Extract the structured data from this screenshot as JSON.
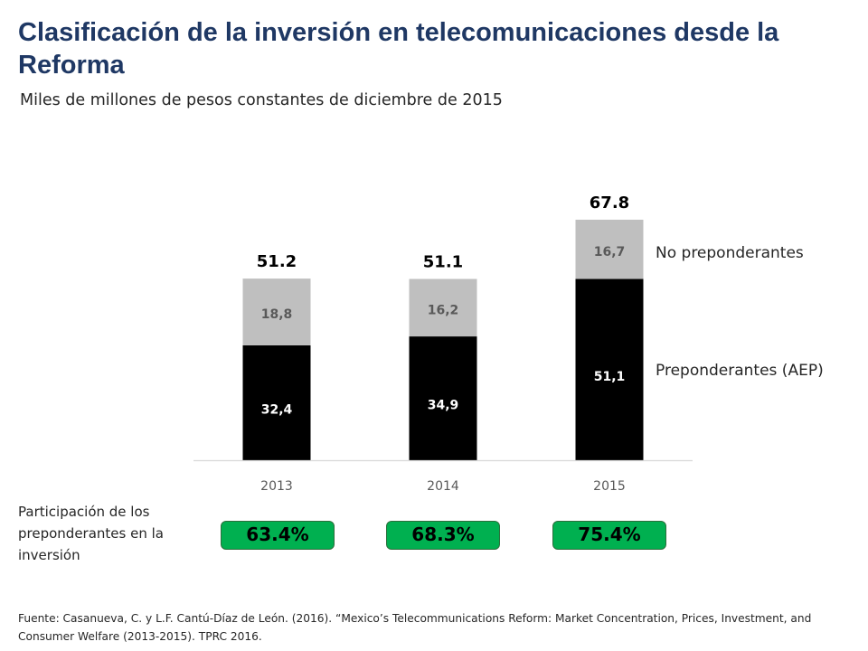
{
  "page": {
    "title": "Clasificación de la inversión en telecomunicaciones desde la Reforma",
    "subtitle": "Miles de millones de pesos constantes de diciembre de 2015",
    "share_label": "Participación de los preponderantes en la inversión",
    "share_badges": [
      "63.4%",
      "68.3%",
      "75.4%"
    ],
    "source": "Fuente: Casanueva, C. y L.F. Cantú-Díaz de León. (2016). “Mexico’s Telecommunications Reform: Market Concentration, Prices, Investment, and Consumer Welfare (2013-2015). TPRC 2016."
  },
  "colors": {
    "title": "#1f3864",
    "preponderantes": "#000000",
    "no_preponderantes": "#bfbfbf",
    "badge": "#00b050"
  },
  "chart_data": {
    "type": "bar",
    "stacked": true,
    "categories": [
      "2013",
      "2014",
      "2015"
    ],
    "series": [
      {
        "name": "Preponderantes (AEP)",
        "values": [
          32.4,
          34.9,
          51.1
        ],
        "labels": [
          "32,4",
          "34,9",
          "51,1"
        ]
      },
      {
        "name": "No preponderantes",
        "values": [
          18.8,
          16.2,
          16.7
        ],
        "labels": [
          "18,8",
          "16,2",
          "16,7"
        ]
      }
    ],
    "totals": [
      "51.2",
      "51.1",
      "67.8"
    ],
    "ylim": [
      0,
      70
    ],
    "grid": false,
    "legend": "right"
  }
}
